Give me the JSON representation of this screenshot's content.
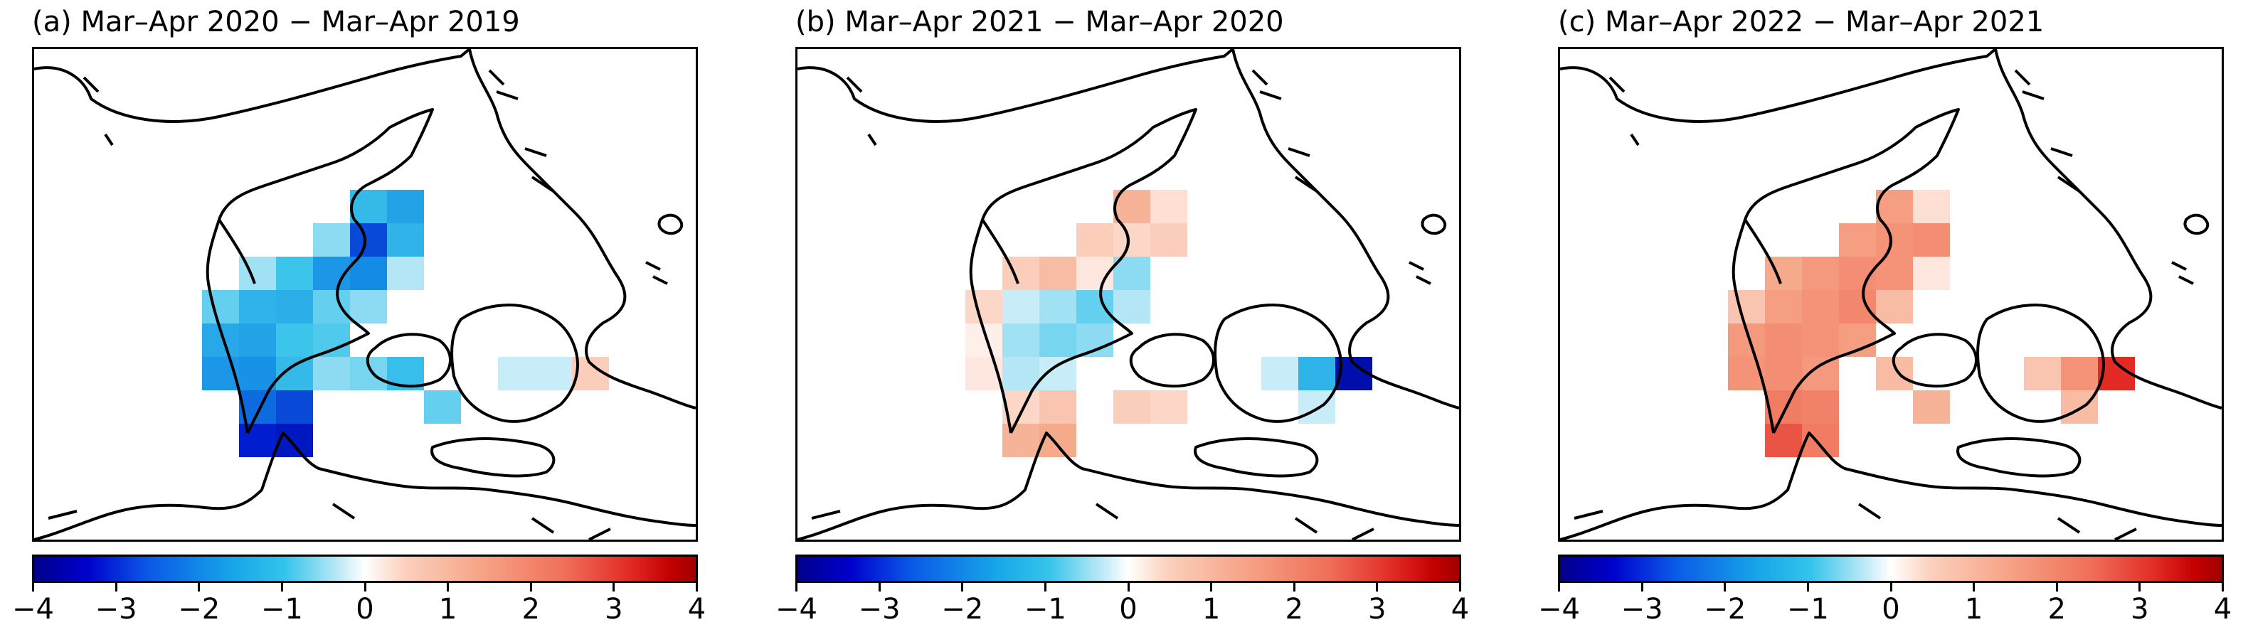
{
  "panels": [
    {
      "title": "(a) Mar–Apr 2020 − Mar–Apr 2019"
    },
    {
      "title": "(b) Mar–Apr 2021 − Mar–Apr 2020"
    },
    {
      "title": "(c) Mar–Apr 2022 − Mar–Apr 2021"
    }
  ],
  "colorbar": {
    "ticks": [
      "−4",
      "−3",
      "−2",
      "−1",
      "0",
      "1",
      "2",
      "3",
      "4"
    ],
    "min": -4,
    "max": 4,
    "colormap": [
      "#00008b",
      "#17a6e8",
      "#ffffff",
      "#f6a285",
      "#c40000"
    ]
  }
}
